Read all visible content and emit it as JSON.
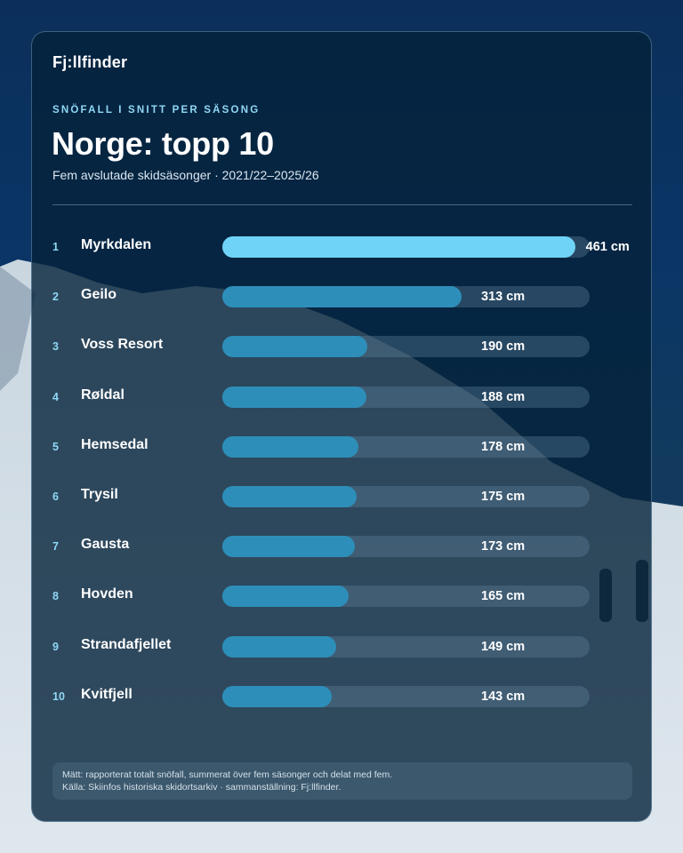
{
  "header": {
    "brand": "Fj:llfinder",
    "kicker": "SNÖFALL I SNITT PER SÄSONG",
    "title": "Norge: topp 10",
    "subtitle": "Fem avslutade skidsäsonger · 2021/22–2025/26"
  },
  "chart_data": {
    "type": "bar",
    "orientation": "horizontal",
    "title": "Norge: topp 10",
    "subtitle": "Fem avslutade skidsäsonger · 2021/22–2025/26",
    "unit": "cm",
    "xlim": [
      0,
      480
    ],
    "grid": false,
    "legend": "none",
    "highlight_index": 0,
    "categories": [
      "Myrkdalen",
      "Geilo",
      "Voss Resort",
      "Røldal",
      "Hemsedal",
      "Trysil",
      "Gausta",
      "Hovden",
      "Strandafjellet",
      "Kvitfjell"
    ],
    "ranks": [
      "1",
      "2",
      "3",
      "4",
      "5",
      "6",
      "7",
      "8",
      "9",
      "10"
    ],
    "values": [
      461,
      313,
      190,
      188,
      178,
      175,
      173,
      165,
      149,
      143
    ],
    "value_labels": [
      "461 cm",
      "313 cm",
      "190 cm",
      "188 cm",
      "178 cm",
      "175 cm",
      "173 cm",
      "165 cm",
      "149 cm",
      "143 cm"
    ]
  },
  "colors": {
    "highlight_bar": "#6fd3f7",
    "bar": "#2d8fb9",
    "track": "#3a5670",
    "accent_text": "#8fd8f5"
  },
  "footer": {
    "line1": "Mätt: rapporterat totalt snöfall, summerat över fem säsonger och delat med fem.",
    "line2": "Källa: Skiinfos historiska skidortsarkiv · sammanställning: Fj:llfinder."
  }
}
